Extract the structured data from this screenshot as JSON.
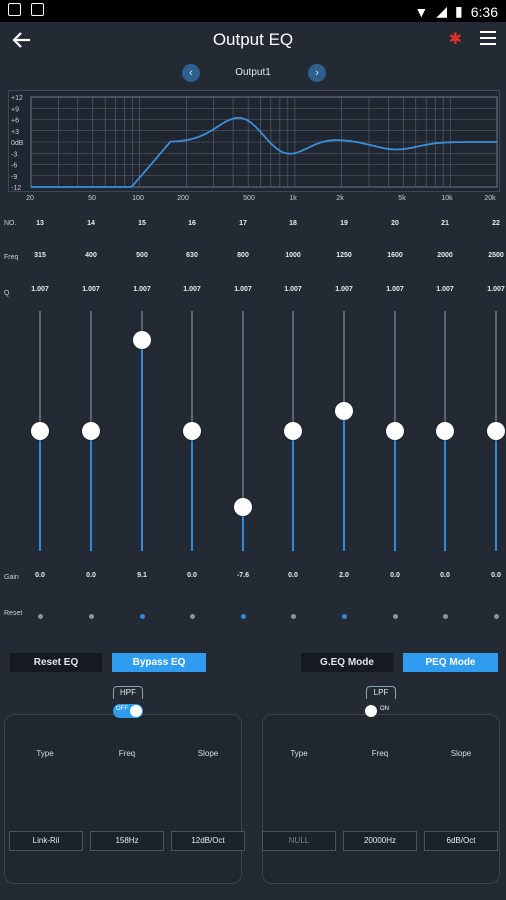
{
  "statusbar": {
    "time": "6:36"
  },
  "header": {
    "title": "Output EQ"
  },
  "output": {
    "label": "Output1",
    "prev": "‹",
    "next": "›"
  },
  "graph": {
    "y_ticks": [
      "+12",
      "+9",
      "+6",
      "+3",
      "0dB",
      "-3",
      "-6",
      "-9",
      "-12"
    ],
    "x_ticks": [
      "20",
      "50",
      "100",
      "200",
      "500",
      "1k",
      "2k",
      "5k",
      "10k",
      "20k"
    ]
  },
  "row_labels": {
    "no": "NO.",
    "freq": "Freq",
    "q": "Q",
    "gain": "Gain",
    "reset": "Reset"
  },
  "bands": [
    {
      "no": "13",
      "freq": "315",
      "q": "1.007",
      "gain": "0.0",
      "gain_db": 0,
      "reset_active": false
    },
    {
      "no": "14",
      "freq": "400",
      "q": "1.007",
      "gain": "0.0",
      "gain_db": 0,
      "reset_active": false
    },
    {
      "no": "15",
      "freq": "500",
      "q": "1.007",
      "gain": "9.1",
      "gain_db": 9.1,
      "reset_active": true
    },
    {
      "no": "16",
      "freq": "630",
      "q": "1.007",
      "gain": "0.0",
      "gain_db": 0,
      "reset_active": false
    },
    {
      "no": "17",
      "freq": "800",
      "q": "1.007",
      "gain": "-7.6",
      "gain_db": -7.6,
      "reset_active": true
    },
    {
      "no": "18",
      "freq": "1000",
      "q": "1.007",
      "gain": "0.0",
      "gain_db": 0,
      "reset_active": false
    },
    {
      "no": "19",
      "freq": "1250",
      "q": "1.007",
      "gain": "2.0",
      "gain_db": 2.0,
      "reset_active": true
    },
    {
      "no": "20",
      "freq": "1600",
      "q": "1.007",
      "gain": "0.0",
      "gain_db": 0,
      "reset_active": false
    },
    {
      "no": "21",
      "freq": "2000",
      "q": "1.007",
      "gain": "0.0",
      "gain_db": 0,
      "reset_active": false
    },
    {
      "no": "22",
      "freq": "2500",
      "q": "1.007",
      "gain": "0.0",
      "gain_db": 0,
      "reset_active": false
    }
  ],
  "buttons": {
    "reset_eq": "Reset EQ",
    "bypass_eq": "Bypass EQ",
    "geq_mode": "G.EQ Mode",
    "peq_mode": "PEQ Mode"
  },
  "hpf": {
    "tag": "HPF",
    "toggle": "OFF",
    "type_label": "Type",
    "freq_label": "Freq",
    "slope_label": "Slope",
    "type": "Link-Ril",
    "freq": "158Hz",
    "slope": "12dB/Oct"
  },
  "lpf": {
    "tag": "LPF",
    "toggle": "ON",
    "type_label": "Type",
    "freq_label": "Freq",
    "slope_label": "Slope",
    "type": "NULL",
    "freq": "20000Hz",
    "slope": "6dB/Oct"
  },
  "colors": {
    "accent": "#2f9cf0",
    "slider_fill": "#2f8ae0",
    "curve": "#3a8fdc",
    "bluetooth": "#e0302e"
  }
}
